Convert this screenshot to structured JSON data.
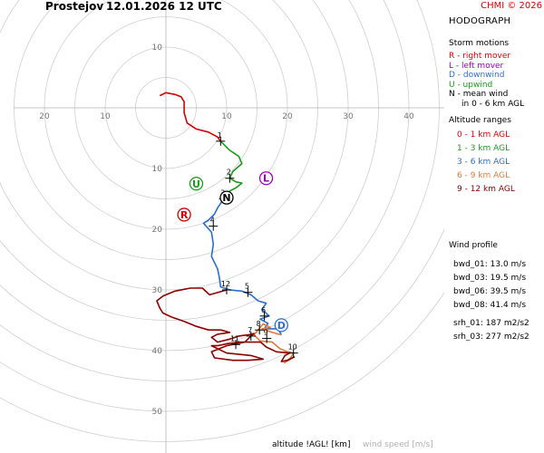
{
  "header": {
    "station": "Prostejov",
    "datetime": "12.01.2026 12 UTC",
    "copyright": "CHMI © 2026"
  },
  "panel": {
    "title": "HODOGRAPH",
    "storm_title": "Storm motions",
    "storm": [
      {
        "text": "R - right mover",
        "color": "#d40000"
      },
      {
        "text": "L - left mover",
        "color": "#a000c0"
      },
      {
        "text": "D - downwind",
        "color": "#2a6fd0"
      },
      {
        "text": "U - upwind",
        "color": "#1a9a1a"
      },
      {
        "text": "N - mean wind",
        "color": "#000000"
      }
    ],
    "storm_note": "in 0 - 6 km AGL",
    "alt_title": "Altitude ranges",
    "alt": [
      {
        "text": "0 - 1 km AGL",
        "color": "#d40000"
      },
      {
        "text": "1 - 3 km AGL",
        "color": "#1a9a1a"
      },
      {
        "text": "3 - 6 km AGL",
        "color": "#2a6fd0"
      },
      {
        "text": "6 - 9 km AGL",
        "color": "#e07a3a"
      },
      {
        "text": "9 - 12 km AGL",
        "color": "#8b0000"
      }
    ]
  },
  "wind_profile": {
    "title": "Wind profile",
    "bwd_01": "bwd_01: 13.0 m/s",
    "bwd_03": "bwd_03: 19.5 m/s",
    "bwd_06": "bwd_06: 39.5 m/s",
    "bwd_08": "bwd_08: 41.4 m/s",
    "srh_01": "srh_01: 187 m2/s2",
    "srh_03": "srh_03: 277 m2/s2"
  },
  "footer": {
    "altitude_label": "altitude !AGL! [km]",
    "windspeed_label": "wind speed [m/s]"
  },
  "axis": {
    "x_ticks": [
      "20",
      "10",
      "10",
      "20",
      "30",
      "40"
    ],
    "y_ticks": [
      "10",
      "10",
      "20",
      "30",
      "40",
      "50"
    ]
  },
  "markers": {
    "height_labels": [
      "1",
      "2",
      "3",
      "4",
      "5",
      "12",
      "6",
      "7",
      "8",
      "9",
      "10",
      "11"
    ],
    "storm_letters": [
      "U",
      "L",
      "N",
      "R",
      "D"
    ]
  },
  "chart_data": {
    "type": "hodograph",
    "unit": "m/s",
    "rings_max": 50,
    "ring_step": 5,
    "segments": [
      {
        "name": "0 - 1 km AGL",
        "color": "#d40000",
        "points": [
          [
            -1,
            2
          ],
          [
            0,
            2.5
          ],
          [
            1.5,
            2.2
          ],
          [
            2.5,
            1.8
          ],
          [
            3,
            1
          ],
          [
            3,
            -0.8
          ],
          [
            3.5,
            -2.5
          ],
          [
            5,
            -3.5
          ],
          [
            7,
            -4
          ],
          [
            8.5,
            -4.8
          ],
          [
            9,
            -5.5
          ]
        ]
      },
      {
        "name": "1 - 3 km AGL",
        "color": "#1a9a1a",
        "points": [
          [
            9,
            -5.5
          ],
          [
            10.5,
            -7
          ],
          [
            12,
            -8
          ],
          [
            12.5,
            -9.2
          ],
          [
            11,
            -10.5
          ],
          [
            10.5,
            -11.6
          ],
          [
            11.5,
            -12.2
          ],
          [
            12.5,
            -12.4
          ],
          [
            11.5,
            -13.2
          ],
          [
            10.5,
            -13.7
          ],
          [
            10,
            -14.3
          ],
          [
            9.5,
            -15
          ]
        ]
      },
      {
        "name": "3 - 6 km AGL",
        "color": "#2a6fd0",
        "points": [
          [
            9.5,
            -15
          ],
          [
            8.5,
            -16.5
          ],
          [
            8,
            -17.5
          ],
          [
            7,
            -18.5
          ],
          [
            6.2,
            -19
          ],
          [
            7.5,
            -20.5
          ],
          [
            7.8,
            -22.5
          ],
          [
            7.5,
            -24.5
          ],
          [
            8.5,
            -26.5
          ],
          [
            8.8,
            -28
          ],
          [
            9,
            -29.5
          ],
          [
            10.5,
            -30
          ],
          [
            12.5,
            -30.2
          ],
          [
            14,
            -30.8
          ],
          [
            15.2,
            -31.8
          ],
          [
            16.5,
            -32.2
          ],
          [
            15.8,
            -33.2
          ],
          [
            17,
            -34.3
          ],
          [
            15.5,
            -34.8
          ],
          [
            16.8,
            -35.5
          ],
          [
            16.2,
            -36.4
          ],
          [
            18.5,
            -36.4
          ],
          [
            19,
            -37.4
          ]
        ]
      },
      {
        "name": "6 - 9 km AGL",
        "color": "#e07a3a",
        "points": [
          [
            19,
            -37.4
          ],
          [
            17.5,
            -37
          ],
          [
            15.8,
            -36.4
          ],
          [
            17.2,
            -36.2
          ],
          [
            16,
            -35.6
          ],
          [
            14.5,
            -37.4
          ],
          [
            15.5,
            -38.4
          ],
          [
            17.5,
            -38.6
          ],
          [
            18.8,
            -39.7
          ],
          [
            20,
            -40.2
          ],
          [
            21,
            -40.4
          ],
          [
            20.5,
            -41.2
          ],
          [
            19.5,
            -42
          ],
          [
            21.2,
            -41
          ]
        ]
      },
      {
        "name": "9 - 12 km AGL",
        "color": "#8b0000",
        "points": [
          [
            21.2,
            -41
          ],
          [
            20,
            -41.6
          ],
          [
            19,
            -41.8
          ],
          [
            19.6,
            -40.8
          ],
          [
            20.4,
            -40.4
          ],
          [
            18.2,
            -40.2
          ],
          [
            16.5,
            -39.4
          ],
          [
            15.6,
            -38.6
          ],
          [
            14,
            -38.6
          ],
          [
            12,
            -38.6
          ],
          [
            10,
            -38.9
          ],
          [
            8.5,
            -39.2
          ],
          [
            7.5,
            -39.2
          ],
          [
            10,
            -40.4
          ],
          [
            14,
            -40.8
          ],
          [
            16,
            -41.4
          ],
          [
            13.5,
            -41.6
          ],
          [
            11,
            -41.6
          ],
          [
            8,
            -41.2
          ],
          [
            7.5,
            -40.2
          ],
          [
            10,
            -39.2
          ],
          [
            13,
            -38.6
          ],
          [
            14,
            -37.6
          ],
          [
            14.5,
            -37.2
          ],
          [
            13.5,
            -37.4
          ],
          [
            12,
            -37.6
          ],
          [
            10.5,
            -38.1
          ],
          [
            8.5,
            -38.6
          ],
          [
            7.5,
            -37.8
          ],
          [
            8.5,
            -37.3
          ],
          [
            10.5,
            -37
          ],
          [
            9,
            -36.6
          ],
          [
            7,
            -36.6
          ],
          [
            5,
            -36
          ],
          [
            3,
            -35.2
          ],
          [
            1,
            -34.5
          ],
          [
            -0.5,
            -33.8
          ],
          [
            -1,
            -33
          ],
          [
            -1.5,
            -31.8
          ],
          [
            -0.5,
            -31
          ],
          [
            1.5,
            -30.2
          ],
          [
            4,
            -29.7
          ],
          [
            6,
            -29.7
          ],
          [
            7.2,
            -30.8
          ],
          [
            10,
            -30
          ]
        ]
      }
    ],
    "height_markers": [
      {
        "label": "1",
        "u": 9,
        "v": -5.5
      },
      {
        "label": "2",
        "u": 10.5,
        "v": -11.6
      },
      {
        "label": "3",
        "u": 9.5,
        "v": -15
      },
      {
        "label": "4",
        "u": 7.8,
        "v": -19.5
      },
      {
        "label": "5",
        "u": 13.5,
        "v": -30.4
      },
      {
        "label": "12",
        "u": 10,
        "v": -30
      },
      {
        "label": "6",
        "u": 16.2,
        "v": -34.3
      },
      {
        "label": "7",
        "u": 14,
        "v": -37.6
      },
      {
        "label": "8",
        "u": 15.4,
        "v": -36.6
      },
      {
        "label": "9",
        "u": 16.6,
        "v": -38
      },
      {
        "label": "10",
        "u": 21,
        "v": -40.4
      },
      {
        "label": "11",
        "u": 11.5,
        "v": -39
      }
    ],
    "storm_motions": [
      {
        "letter": "U",
        "u": 5,
        "v": -12.5,
        "color": "#1a9a1a"
      },
      {
        "letter": "L",
        "u": 16.5,
        "v": -11.6,
        "color": "#a000c0"
      },
      {
        "letter": "N",
        "u": 10,
        "v": -14.8,
        "color": "#000000"
      },
      {
        "letter": "R",
        "u": 3,
        "v": -17.6,
        "color": "#d40000"
      },
      {
        "letter": "D",
        "u": 19,
        "v": -35.8,
        "color": "#2a6fd0"
      }
    ]
  }
}
